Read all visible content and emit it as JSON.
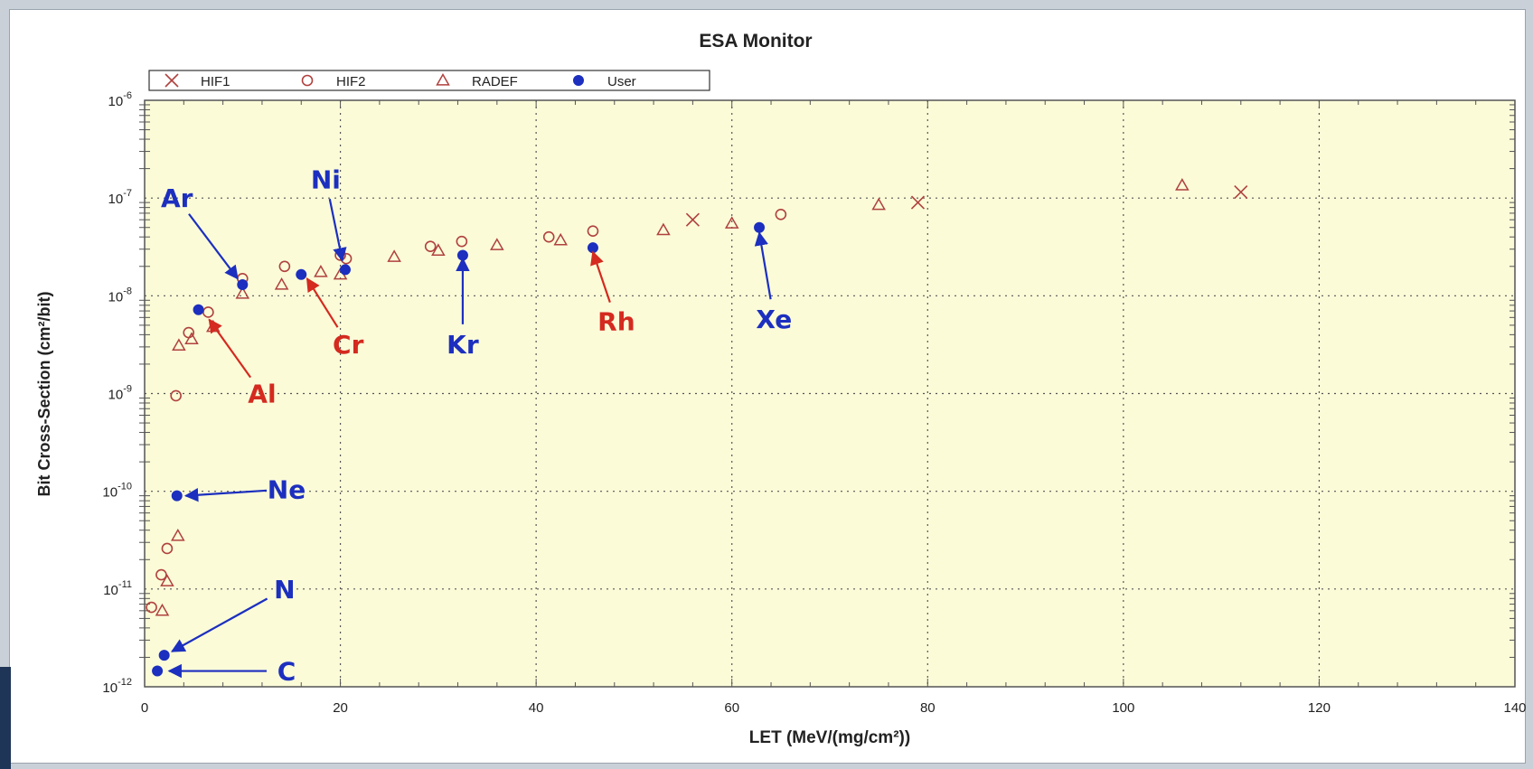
{
  "chart_data": {
    "type": "scatter",
    "title": "ESA Monitor",
    "xlabel": "LET (MeV/(mg/cm²))",
    "ylabel": "Bit Cross-Section (cm²/bit)",
    "xlim": [
      0,
      140
    ],
    "ylim": [
      1e-12,
      1e-06
    ],
    "yscale": "log",
    "x_ticks": [
      0,
      20,
      40,
      60,
      80,
      100,
      120,
      140
    ],
    "x_tick_labels": [
      "0",
      "20",
      "40",
      "60",
      "80",
      "100",
      "120",
      "140"
    ],
    "y_ticks": [
      -6,
      -7,
      -8,
      -9,
      -10,
      -11,
      -12
    ],
    "y_tick_labels": [
      {
        "base": "10",
        "exp": "-6"
      },
      {
        "base": "10",
        "exp": "-7"
      },
      {
        "base": "10",
        "exp": "-8"
      },
      {
        "base": "10",
        "exp": "-9"
      },
      {
        "base": "10",
        "exp": "-10"
      },
      {
        "base": "10",
        "exp": "-11"
      },
      {
        "base": "10",
        "exp": "-12"
      }
    ],
    "grid": true,
    "legend_position": "top-left",
    "plot_background": "#fbfbd8",
    "series": [
      {
        "name": "HIF1",
        "marker": "x",
        "color": "#b0413e",
        "points": [
          [
            56,
            6e-08
          ],
          [
            79,
            9e-08
          ],
          [
            112,
            1.15e-07
          ]
        ]
      },
      {
        "name": "HIF2",
        "marker": "circle",
        "color": "#b0413e",
        "points": [
          [
            0.7,
            6.5e-12
          ],
          [
            1.7,
            1.4e-11
          ],
          [
            2.3,
            2.6e-11
          ],
          [
            3.2,
            9.5e-10
          ],
          [
            4.5,
            4.2e-09
          ],
          [
            6.5,
            6.8e-09
          ],
          [
            10,
            1.5e-08
          ],
          [
            14.3,
            2e-08
          ],
          [
            20,
            2.6e-08
          ],
          [
            20.6,
            2.4e-08
          ],
          [
            29.2,
            3.2e-08
          ],
          [
            32.4,
            3.6e-08
          ],
          [
            41.3,
            4e-08
          ],
          [
            45.8,
            4.6e-08
          ],
          [
            65,
            6.8e-08
          ]
        ]
      },
      {
        "name": "RADEF",
        "marker": "triangle",
        "color": "#b0413e",
        "points": [
          [
            1.8,
            6e-12
          ],
          [
            2.3,
            1.2e-11
          ],
          [
            3.4,
            3.5e-11
          ],
          [
            3.5,
            3.1e-09
          ],
          [
            4.8,
            3.6e-09
          ],
          [
            7,
            4.8e-09
          ],
          [
            10,
            1.05e-08
          ],
          [
            14,
            1.3e-08
          ],
          [
            18,
            1.75e-08
          ],
          [
            20,
            1.65e-08
          ],
          [
            25.5,
            2.5e-08
          ],
          [
            30,
            2.9e-08
          ],
          [
            36,
            3.3e-08
          ],
          [
            42.5,
            3.7e-08
          ],
          [
            53,
            4.7e-08
          ],
          [
            60,
            5.5e-08
          ],
          [
            75,
            8.5e-08
          ],
          [
            106,
            1.35e-07
          ]
        ]
      },
      {
        "name": "User",
        "marker": "filled-circle",
        "color": "#1c2fbf",
        "points": [
          [
            1.3,
            1.45e-12
          ],
          [
            2,
            2.1e-12
          ],
          [
            3.3,
            9e-11
          ],
          [
            5.5,
            7.2e-09
          ],
          [
            10,
            1.3e-08
          ],
          [
            16,
            1.65e-08
          ],
          [
            20.5,
            1.85e-08
          ],
          [
            32.5,
            2.6e-08
          ],
          [
            45.8,
            3.1e-08
          ],
          [
            62.8,
            5e-08
          ]
        ]
      }
    ],
    "annotations": [
      {
        "text": "Ar",
        "color": "#1c2fbf",
        "x": 3.3,
        "y": 1e-07,
        "point": [
          9.5,
          1.5e-08
        ],
        "dy": -3
      },
      {
        "text": "Ni",
        "color": "#1c2fbf",
        "x": 18.5,
        "y": 1.55e-07,
        "point": [
          20.2,
          2.3e-08
        ],
        "dy": -3
      },
      {
        "text": "Al",
        "color": "#d42a1f",
        "x": 12,
        "y": 1e-09,
        "point": [
          6.6,
          5.7e-09
        ],
        "dy": 0
      },
      {
        "text": "Cr",
        "color": "#d42a1f",
        "x": 20.8,
        "y": 3.2e-09,
        "point": [
          16.6,
          1.5e-08
        ],
        "dy": 0
      },
      {
        "text": "Kr",
        "color": "#1c2fbf",
        "x": 32.5,
        "y": 3.2e-09,
        "point": [
          32.5,
          2.4e-08
        ],
        "dy": 0
      },
      {
        "text": "Rh",
        "color": "#d42a1f",
        "x": 48.2,
        "y": 5.5e-09,
        "point": [
          45.8,
          2.8e-08
        ],
        "dy": 0
      },
      {
        "text": "Xe",
        "color": "#1c2fbf",
        "x": 64.3,
        "y": 5.8e-09,
        "point": [
          62.8,
          4.4e-08
        ],
        "dy": 0
      },
      {
        "text": "Ne",
        "color": "#1c2fbf",
        "x": 14.5,
        "y": 1.05e-10,
        "point": [
          4.2,
          9e-11
        ],
        "dy": 0
      },
      {
        "text": "N",
        "color": "#1c2fbf",
        "x": 14.3,
        "y": 1e-11,
        "point": [
          2.8,
          2.3e-12
        ],
        "dy": 0
      },
      {
        "text": "C",
        "color": "#1c2fbf",
        "x": 14.5,
        "y": 1.45e-12,
        "point": [
          2.5,
          1.45e-12
        ],
        "dy": 0
      }
    ]
  }
}
